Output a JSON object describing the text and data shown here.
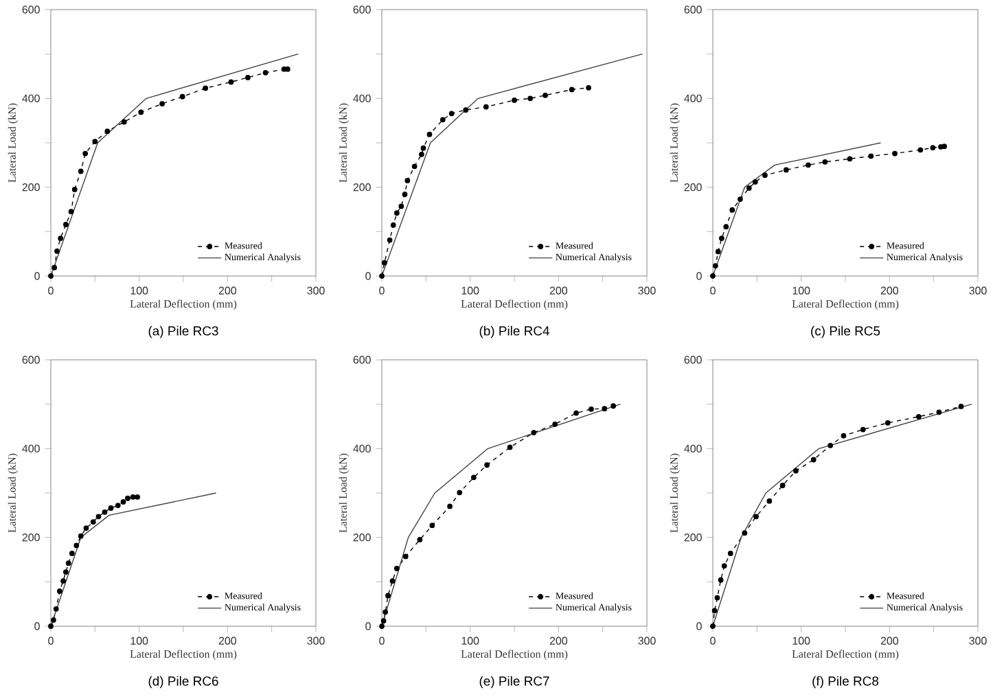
{
  "chart_data": [
    {
      "type": "line",
      "title": "(a) Pile RC3",
      "xlabel": "Lateral Deflection (mm)",
      "ylabel": "Lateral Load (kN)",
      "xlim": [
        0,
        300
      ],
      "ylim": [
        0,
        600
      ],
      "xticks": [
        0,
        {
          "value": 50,
          "label": null
        },
        100,
        {
          "value": 150,
          "label": null
        },
        200,
        {
          "value": 250,
          "label": null
        },
        300
      ],
      "yticks": [
        0,
        {
          "value": 100,
          "label": null
        },
        200,
        {
          "value": 300,
          "label": null
        },
        400,
        {
          "value": 500,
          "label": null
        },
        600
      ],
      "grid": false,
      "legend": "bottom right",
      "series": [
        {
          "name": "Measured",
          "color": "#000000",
          "marker": "circle",
          "line_style": "dashed",
          "x": [
            0,
            4,
            7,
            11,
            17,
            23,
            27,
            34,
            39,
            50,
            64,
            83,
            102,
            126,
            149,
            175,
            204,
            223,
            243,
            264,
            268
          ],
          "values": [
            0,
            19,
            56,
            85,
            116,
            145,
            195,
            236,
            276,
            303,
            326,
            347,
            369,
            388,
            404,
            423,
            437,
            447,
            458,
            466,
            466
          ]
        },
        {
          "name": "Numerical Analysis",
          "color": "#404040",
          "marker": "none",
          "line_style": "solid",
          "x": [
            0,
            53,
            108,
            280
          ],
          "values": [
            0,
            300,
            400,
            500
          ]
        }
      ]
    },
    {
      "type": "line",
      "title": "(b) Pile RC4",
      "xlabel": "Lateral Deflection (mm)",
      "ylabel": "Lateral Load (kN)",
      "xlim": [
        0,
        300
      ],
      "ylim": [
        0,
        600
      ],
      "xticks": [
        0,
        {
          "value": 50,
          "label": null
        },
        100,
        {
          "value": 150,
          "label": null
        },
        200,
        {
          "value": 250,
          "label": null
        },
        300
      ],
      "yticks": [
        0,
        {
          "value": 100,
          "label": null
        },
        200,
        {
          "value": 300,
          "label": null
        },
        400,
        {
          "value": 500,
          "label": null
        },
        600
      ],
      "grid": false,
      "legend": "bottom right",
      "series": [
        {
          "name": "Measured",
          "color": "#000000",
          "marker": "circle",
          "line_style": "dashed",
          "x": [
            0,
            3,
            9,
            13,
            17,
            22,
            26,
            29,
            37,
            45,
            47,
            54,
            69,
            79,
            95,
            118,
            150,
            168,
            185,
            215,
            234
          ],
          "values": [
            0,
            30,
            81,
            115,
            142,
            157,
            184,
            215,
            247,
            274,
            288,
            319,
            352,
            366,
            374,
            381,
            396,
            400,
            407,
            420,
            424
          ]
        },
        {
          "name": "Numerical Analysis",
          "color": "#404040",
          "marker": "none",
          "line_style": "solid",
          "x": [
            0,
            55,
            109,
            295
          ],
          "values": [
            0,
            300,
            400,
            500
          ]
        }
      ]
    },
    {
      "type": "line",
      "title": "(c) Pile RC5",
      "xlabel": "Lateral Deflection (mm)",
      "ylabel": "Lateral Load (kN)",
      "xlim": [
        0,
        300
      ],
      "ylim": [
        0,
        600
      ],
      "xticks": [
        0,
        {
          "value": 50,
          "label": null
        },
        100,
        {
          "value": 150,
          "label": null
        },
        200,
        {
          "value": 250,
          "label": null
        },
        300
      ],
      "yticks": [
        0,
        {
          "value": 100,
          "label": null
        },
        200,
        {
          "value": 300,
          "label": null
        },
        400,
        {
          "value": 500,
          "label": null
        },
        600
      ],
      "grid": false,
      "legend": "bottom right",
      "series": [
        {
          "name": "Measured",
          "color": "#000000",
          "marker": "circle",
          "line_style": "dashed",
          "x": [
            0,
            3,
            6,
            10,
            15,
            22,
            31,
            41,
            48,
            59,
            83,
            108,
            127,
            155,
            179,
            206,
            235,
            249,
            258,
            262
          ],
          "values": [
            0,
            23,
            55,
            85,
            111,
            149,
            173,
            198,
            212,
            227,
            239,
            250,
            257,
            264,
            270,
            276,
            284,
            289,
            291,
            292
          ]
        },
        {
          "name": "Numerical Analysis",
          "color": "#404040",
          "marker": "none",
          "line_style": "solid",
          "x": [
            0,
            36,
            70,
            190
          ],
          "values": [
            0,
            200,
            250,
            300
          ]
        }
      ]
    },
    {
      "type": "line",
      "title": "(d) Pile RC6",
      "xlabel": "Lateral Deflection (mm)",
      "ylabel": "Lateral Load (kN)",
      "xlim": [
        0,
        300
      ],
      "ylim": [
        0,
        600
      ],
      "xticks": [
        0,
        {
          "value": 50,
          "label": null
        },
        100,
        {
          "value": 150,
          "label": null
        },
        200,
        {
          "value": 250,
          "label": null
        },
        300
      ],
      "yticks": [
        0,
        {
          "value": 100,
          "label": null
        },
        200,
        {
          "value": 300,
          "label": null
        },
        400,
        {
          "value": 500,
          "label": null
        },
        600
      ],
      "grid": false,
      "legend": "bottom right",
      "series": [
        {
          "name": "Measured",
          "color": "#000000",
          "marker": "circle",
          "line_style": "dashed",
          "x": [
            0,
            3,
            6,
            10,
            14,
            17,
            20,
            24,
            29,
            34,
            40,
            48,
            54,
            61,
            68,
            76,
            82,
            87,
            93,
            98
          ],
          "values": [
            0,
            14,
            39,
            79,
            102,
            122,
            142,
            164,
            182,
            203,
            221,
            235,
            247,
            257,
            266,
            272,
            280,
            288,
            291,
            291
          ]
        },
        {
          "name": "Numerical Analysis",
          "color": "#404040",
          "marker": "none",
          "line_style": "solid",
          "x": [
            0,
            34,
            66,
            187
          ],
          "values": [
            0,
            200,
            250,
            300
          ]
        }
      ]
    },
    {
      "type": "line",
      "title": "(e) Pile RC7",
      "xlabel": "Lateral Deflection (mm)",
      "ylabel": "Lateral Load (kN)",
      "xlim": [
        0,
        300
      ],
      "ylim": [
        0,
        600
      ],
      "xticks": [
        0,
        {
          "value": 50,
          "label": null
        },
        100,
        {
          "value": 150,
          "label": null
        },
        200,
        {
          "value": 250,
          "label": null
        },
        300
      ],
      "yticks": [
        0,
        {
          "value": 100,
          "label": null
        },
        200,
        {
          "value": 300,
          "label": null
        },
        400,
        {
          "value": 500,
          "label": null
        },
        600
      ],
      "grid": false,
      "legend": "bottom right",
      "series": [
        {
          "name": "Measured",
          "color": "#000000",
          "marker": "circle",
          "line_style": "dashed",
          "x": [
            0,
            2,
            4,
            7,
            12,
            17,
            27,
            43,
            57,
            77,
            88,
            104,
            119,
            145,
            172,
            196,
            220,
            237,
            252,
            262
          ],
          "values": [
            0,
            12,
            32,
            69,
            102,
            130,
            157,
            195,
            227,
            270,
            301,
            335,
            363,
            403,
            436,
            455,
            480,
            489,
            490,
            496
          ]
        },
        {
          "name": "Numerical Analysis",
          "color": "#404040",
          "marker": "none",
          "line_style": "solid",
          "x": [
            0,
            30,
            60,
            120,
            270
          ],
          "values": [
            0,
            200,
            300,
            400,
            500
          ]
        }
      ]
    },
    {
      "type": "line",
      "title": "(f) Pile RC8",
      "xlabel": "Lateral Deflection (mm)",
      "ylabel": "Lateral Load (kN)",
      "xlim": [
        0,
        300
      ],
      "ylim": [
        0,
        600
      ],
      "xticks": [
        0,
        {
          "value": 50,
          "label": null
        },
        100,
        {
          "value": 150,
          "label": null
        },
        200,
        {
          "value": 250,
          "label": null
        },
        300
      ],
      "yticks": [
        0,
        {
          "value": 100,
          "label": null
        },
        200,
        {
          "value": 300,
          "label": null
        },
        400,
        {
          "value": 500,
          "label": null
        },
        600
      ],
      "grid": false,
      "legend": "bottom right",
      "series": [
        {
          "name": "Measured",
          "color": "#000000",
          "marker": "circle",
          "line_style": "dashed",
          "x": [
            0,
            2,
            5,
            9,
            13,
            20,
            36,
            49,
            64,
            79,
            94,
            114,
            133,
            148,
            170,
            198,
            233,
            256,
            281
          ],
          "values": [
            0,
            35,
            64,
            104,
            136,
            164,
            210,
            247,
            282,
            317,
            350,
            375,
            407,
            429,
            443,
            458,
            472,
            482,
            495
          ]
        },
        {
          "name": "Numerical Analysis",
          "color": "#404040",
          "marker": "none",
          "line_style": "solid",
          "x": [
            0,
            32,
            60,
            120,
            293
          ],
          "values": [
            0,
            200,
            300,
            400,
            500
          ]
        }
      ]
    }
  ]
}
